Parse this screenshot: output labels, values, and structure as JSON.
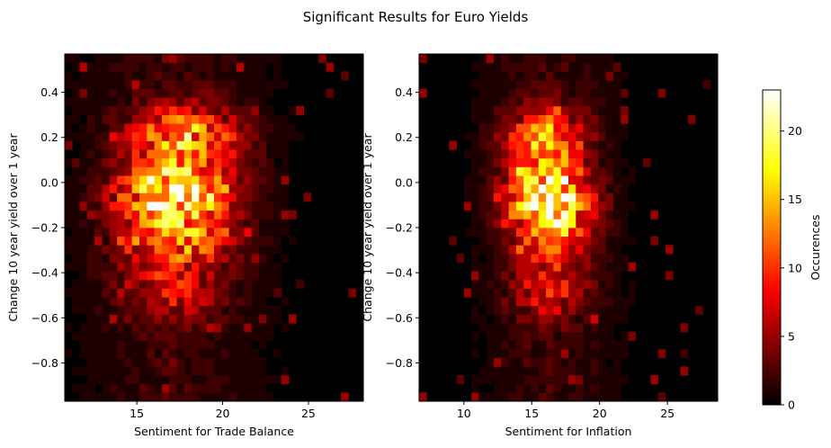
{
  "figure": {
    "suptitle": "Significant Results for Euro Yields"
  },
  "colorbar": {
    "label": "Occurences",
    "range": [
      0,
      23
    ],
    "ticks": [
      "0",
      "5",
      "10",
      "15",
      "20"
    ],
    "tick_values": [
      0,
      5,
      10,
      15,
      20
    ],
    "colormap": "hot"
  },
  "chart_data": [
    {
      "type": "heatmap",
      "xlabel": "Sentiment for Trade Balance",
      "ylabel": "Change 10 year yield over 1 year",
      "xlim": [
        10.8,
        28.2
      ],
      "ylim": [
        -0.97,
        0.57
      ],
      "xticks": [
        15,
        20,
        25
      ],
      "xtick_labels": [
        "15",
        "20",
        "25"
      ],
      "yticks": [
        -0.8,
        -0.6,
        -0.4,
        -0.2,
        0.0,
        0.2,
        0.4
      ],
      "ytick_labels": [
        "−0.8",
        "−0.6",
        "−0.4",
        "−0.2",
        "0.0",
        "0.2",
        "0.4"
      ],
      "bins": [
        40,
        40
      ],
      "hotspots": [
        {
          "x": 17.2,
          "y": -0.05,
          "count": 20
        },
        {
          "x": 17.8,
          "y": 0.2,
          "count": 14
        },
        {
          "x": 17.5,
          "y": -0.25,
          "count": 10
        },
        {
          "x": 17.0,
          "y": -0.47,
          "count": 6
        }
      ]
    },
    {
      "type": "heatmap",
      "xlabel": "Sentiment for Inflation",
      "ylabel": "Change 10 year yield over 1 year",
      "xlim": [
        6.7,
        28.7
      ],
      "ylim": [
        -0.97,
        0.57
      ],
      "xticks": [
        10,
        15,
        20,
        25
      ],
      "xtick_labels": [
        "10",
        "15",
        "20",
        "25"
      ],
      "yticks": [
        -0.8,
        -0.6,
        -0.4,
        -0.2,
        0.0,
        0.2,
        0.4
      ],
      "ytick_labels": [
        "−0.8",
        "−0.6",
        "−0.4",
        "−0.2",
        "0.0",
        "0.2",
        "0.4"
      ],
      "bins": [
        40,
        40
      ],
      "hotspots": [
        {
          "x": 16.3,
          "y": -0.05,
          "count": 21
        },
        {
          "x": 16.0,
          "y": 0.2,
          "count": 12
        },
        {
          "x": 16.5,
          "y": -0.22,
          "count": 10
        },
        {
          "x": 16.3,
          "y": -0.47,
          "count": 7
        }
      ]
    }
  ]
}
